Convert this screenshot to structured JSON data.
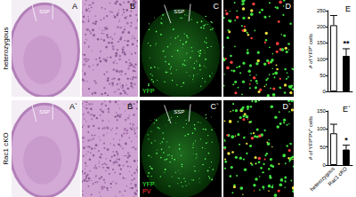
{
  "rows": [
    {
      "label": "heterozygous",
      "panels": [
        {
          "letter": "A",
          "texts": [
            {
              "text": "SSP",
              "color": "#ffffff"
            }
          ]
        },
        {
          "letter": "B",
          "texts": []
        },
        {
          "letter": "C",
          "texts": [
            {
              "text": "SSP",
              "color": "#ffffff"
            },
            {
              "text": "YFP",
              "color": "#33ff33"
            }
          ]
        },
        {
          "letter": "D",
          "texts": []
        }
      ]
    },
    {
      "label": "Rac1 cKO",
      "panels": [
        {
          "letter": "A`",
          "texts": [
            {
              "text": "SSP",
              "color": "#ffffff"
            }
          ]
        },
        {
          "letter": "B`",
          "texts": []
        },
        {
          "letter": "C`",
          "texts": [
            {
              "text": "SSP",
              "color": "#ffffff"
            },
            {
              "text": "YFP",
              "color": "#33ff33"
            },
            {
              "text": "PV",
              "color": "#ff3333"
            }
          ]
        },
        {
          "letter": "D`",
          "texts": []
        }
      ]
    }
  ],
  "chart_data": [
    {
      "type": "bar",
      "title": "E",
      "y_label": "# of YFP⁺ cells",
      "categories": [
        null,
        null
      ],
      "values": [
        205,
        110
      ],
      "errors": [
        30,
        22
      ],
      "colors": [
        "#ffffff",
        "#000000"
      ],
      "annotations": [
        {
          "index": 1,
          "text": "**"
        }
      ],
      "ylim": [
        0,
        250
      ],
      "yticks": [
        0,
        50,
        100,
        150,
        200,
        250
      ],
      "grid": false
    },
    {
      "type": "bar",
      "title": "E`",
      "y_label": "# of YFP⁺PV⁺ cells",
      "categories": [
        "heterozygous",
        "Rac1 cKO"
      ],
      "values": [
        88,
        43
      ],
      "errors": [
        25,
        12
      ],
      "colors": [
        "#ffffff",
        "#000000"
      ],
      "annotations": [
        {
          "index": 1,
          "text": "*"
        }
      ],
      "ylim": [
        0,
        150
      ],
      "yticks": [
        0,
        50,
        100,
        150
      ],
      "grid": false
    }
  ]
}
